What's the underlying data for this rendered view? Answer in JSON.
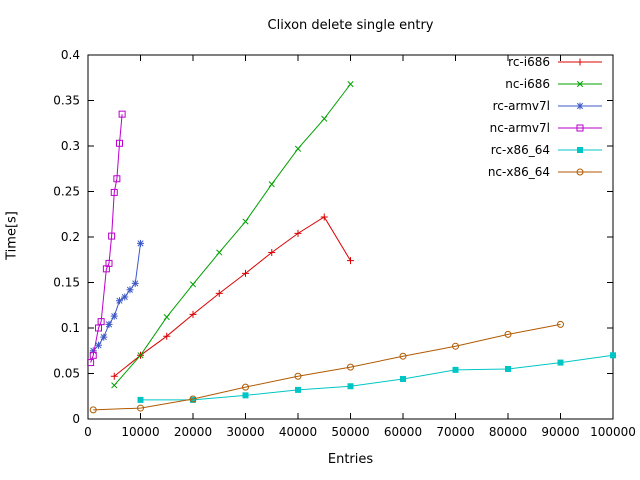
{
  "window": {
    "background": "#ffffff",
    "text_color": "#000000"
  },
  "chart_data": {
    "type": "line",
    "title": "Clixon delete single entry",
    "xlabel": "Entries",
    "ylabel": "Time[s]",
    "xlim": [
      0,
      100000
    ],
    "ylim": [
      0,
      0.4
    ],
    "xticks": [
      0,
      10000,
      20000,
      30000,
      40000,
      50000,
      60000,
      70000,
      80000,
      90000,
      100000
    ],
    "yticks": [
      0,
      0.05,
      0.1,
      0.15,
      0.2,
      0.25,
      0.3,
      0.35,
      0.4
    ],
    "grid": false,
    "legend_position": "top-right-inside",
    "border_color": "#000000",
    "series": [
      {
        "name": "rc-i686",
        "color": "#dd0000",
        "marker": "plus",
        "x": [
          5000,
          10000,
          15000,
          20000,
          25000,
          30000,
          35000,
          40000,
          45000,
          50000
        ],
        "y": [
          0.047,
          0.07,
          0.091,
          0.115,
          0.138,
          0.16,
          0.183,
          0.204,
          0.222,
          0.174
        ]
      },
      {
        "name": "nc-i686",
        "color": "#00a000",
        "marker": "cross",
        "x": [
          5000,
          10000,
          15000,
          20000,
          25000,
          30000,
          35000,
          40000,
          45000,
          50000
        ],
        "y": [
          0.037,
          0.07,
          0.112,
          0.148,
          0.183,
          0.217,
          0.258,
          0.297,
          0.33,
          0.368
        ]
      },
      {
        "name": "rc-armv7l",
        "color": "#3c58c8",
        "marker": "asterisk",
        "x": [
          1000,
          2000,
          3000,
          4000,
          5000,
          6000,
          7000,
          8000,
          9000,
          10000
        ],
        "y": [
          0.075,
          0.081,
          0.09,
          0.104,
          0.113,
          0.13,
          0.134,
          0.142,
          0.149,
          0.193
        ]
      },
      {
        "name": "nc-armv7l",
        "color": "#bb00cc",
        "marker": "square-open",
        "x": [
          500,
          1000,
          2000,
          2500,
          3500,
          4000,
          4500,
          5000,
          5500,
          6000,
          6500
        ],
        "y": [
          0.062,
          0.07,
          0.1,
          0.107,
          0.165,
          0.171,
          0.201,
          0.249,
          0.264,
          0.303,
          0.335
        ]
      },
      {
        "name": "rc-x86_64",
        "color": "#00c5c5",
        "marker": "square-filled",
        "x": [
          10000,
          20000,
          30000,
          40000,
          50000,
          60000,
          70000,
          80000,
          90000,
          100000
        ],
        "y": [
          0.021,
          0.021,
          0.026,
          0.032,
          0.036,
          0.044,
          0.054,
          0.055,
          0.062,
          0.07
        ]
      },
      {
        "name": "nc-x86_64",
        "color": "#b05a00",
        "marker": "circle-open",
        "x": [
          1000,
          10000,
          20000,
          30000,
          40000,
          50000,
          60000,
          70000,
          80000,
          90000
        ],
        "y": [
          0.01,
          0.012,
          0.022,
          0.035,
          0.047,
          0.057,
          0.069,
          0.08,
          0.093,
          0.104
        ]
      }
    ]
  }
}
